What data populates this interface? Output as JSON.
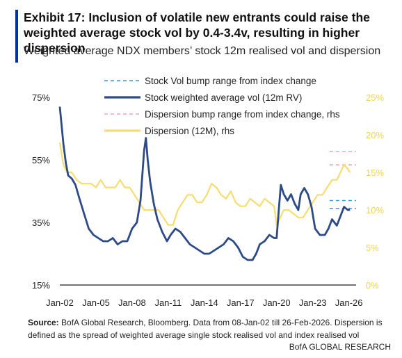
{
  "header": {
    "title": "Exhibit 17: Inclusion of volatile new entrants could raise the weighted average stock vol by 0.4-3.4v, resulting in higher dispersion",
    "subtitle": "Weighted average NDX members’ stock 12m realised vol and dispersion"
  },
  "footer": {
    "source_label": "Source:",
    "source_text": " BofA Global Research, Bloomberg. Data from 08-Jan-02 till 26-Feb-2026. Dispersion is defined as the spread of weighted average single stock realised vol and index realised vol",
    "brand": "BofA GLOBAL RESEARCH"
  },
  "colors": {
    "stock_vol": "#2c4a86",
    "stock_bump": "#2aa0d8",
    "dispersion": "#f7dc6f",
    "dispersion_bump": "#e8a9b3",
    "left_axis_text": "#222222",
    "right_axis_text": "#f2d35a"
  },
  "chart_data": {
    "type": "line",
    "x_tick_labels": [
      "Jan-02",
      "Jan-05",
      "Jan-08",
      "Jan-11",
      "Jan-14",
      "Jan-17",
      "Jan-20",
      "Jan-23",
      "Jan-26"
    ],
    "x_tick_years": [
      2002,
      2005,
      2008,
      2011,
      2014,
      2017,
      2020,
      2023,
      2026
    ],
    "xlim": [
      2002.0,
      2026.6
    ],
    "y_left": {
      "ylim": [
        15,
        75
      ],
      "ticks": [
        15,
        35,
        55,
        75
      ],
      "tick_labels": [
        "15%",
        "35%",
        "55%",
        "75%"
      ]
    },
    "y_right": {
      "ylim": [
        0,
        25
      ],
      "ticks": [
        0,
        5,
        10,
        15,
        20,
        25
      ],
      "tick_labels": [
        "0%",
        "5%",
        "10%",
        "15%",
        "20%",
        "25%"
      ]
    },
    "legend_position": "top-center",
    "series": [
      {
        "name": "Stock weighted average vol (12m RV)",
        "axis": "left",
        "style": "solid",
        "x": [
          2002.0,
          2002.15,
          2002.3,
          2002.5,
          2002.7,
          2003.0,
          2003.3,
          2003.6,
          2004.0,
          2004.4,
          2004.8,
          2005.2,
          2005.6,
          2006.0,
          2006.4,
          2006.8,
          2007.2,
          2007.6,
          2008.0,
          2008.4,
          2008.7,
          2009.0,
          2009.15,
          2009.3,
          2009.5,
          2009.8,
          2010.1,
          2010.5,
          2010.9,
          2011.2,
          2011.6,
          2012.0,
          2012.4,
          2012.8,
          2013.2,
          2013.6,
          2014.0,
          2014.4,
          2014.8,
          2015.2,
          2015.6,
          2016.0,
          2016.4,
          2016.8,
          2017.2,
          2017.6,
          2018.0,
          2018.3,
          2018.6,
          2019.0,
          2019.4,
          2019.8,
          2020.0,
          2020.2,
          2020.35,
          2020.6,
          2020.9,
          2021.2,
          2021.5,
          2021.8,
          2022.0,
          2022.3,
          2022.6,
          2022.9,
          2023.2,
          2023.6,
          2024.0,
          2024.3,
          2024.6,
          2025.0,
          2025.3,
          2025.6,
          2025.9,
          2026.1
        ],
        "values": [
          72,
          66,
          60,
          54,
          50,
          49,
          47,
          43,
          38,
          33,
          31,
          30,
          29,
          29,
          30,
          28,
          29,
          29,
          33,
          35,
          42,
          58,
          62,
          55,
          48,
          41,
          36,
          32,
          29,
          31,
          33,
          32,
          30,
          28,
          27,
          26,
          25,
          25,
          26,
          27,
          28,
          30,
          29,
          27,
          24,
          23,
          23,
          25,
          28,
          29,
          31,
          30,
          30,
          40,
          47,
          44,
          42,
          44,
          41,
          39,
          44,
          46,
          44,
          40,
          33,
          31,
          31,
          33,
          36,
          34,
          37,
          40,
          39,
          39
        ]
      },
      {
        "name": "Dispersion (12M), rhs",
        "axis": "right",
        "style": "solid",
        "x": [
          2002.0,
          2002.3,
          2002.6,
          2003.0,
          2003.4,
          2003.8,
          2004.2,
          2004.6,
          2005.0,
          2005.4,
          2005.8,
          2006.2,
          2006.6,
          2007.0,
          2007.4,
          2007.8,
          2008.2,
          2008.6,
          2009.0,
          2009.4,
          2009.8,
          2010.2,
          2010.6,
          2011.0,
          2011.4,
          2011.8,
          2012.2,
          2012.6,
          2013.0,
          2013.4,
          2013.8,
          2014.2,
          2014.6,
          2015.0,
          2015.4,
          2015.8,
          2016.2,
          2016.6,
          2017.0,
          2017.4,
          2017.8,
          2018.2,
          2018.6,
          2019.0,
          2019.4,
          2019.8,
          2020.0,
          2020.3,
          2020.6,
          2021.0,
          2021.4,
          2021.8,
          2022.2,
          2022.6,
          2023.0,
          2023.4,
          2023.8,
          2024.2,
          2024.6,
          2025.0,
          2025.3,
          2025.6,
          2025.9,
          2026.1
        ],
        "values": [
          19,
          16,
          15,
          15,
          14,
          13.5,
          13.5,
          13.5,
          13,
          14,
          13,
          13,
          13,
          14,
          13,
          13,
          12,
          11,
          10,
          10,
          10,
          10,
          9,
          8,
          8,
          10,
          11,
          12,
          12,
          11,
          11,
          12,
          13.5,
          13,
          12,
          11.5,
          12.5,
          11,
          10.5,
          10.5,
          11.5,
          11,
          10.5,
          11.5,
          11,
          10.5,
          8,
          9,
          10,
          10,
          9.5,
          9,
          9,
          10,
          11,
          12,
          12,
          13,
          14,
          14,
          15,
          16,
          15.5,
          15
        ]
      },
      {
        "name": "Stock Vol bump range from index change",
        "axis": "left",
        "style": "dashed",
        "x_range": [
          2024.4,
          2026.6
        ],
        "levels": [
          39.5,
          42
        ]
      },
      {
        "name": "Dispersion bump range from index change, rhs",
        "axis": "right",
        "style": "dashed",
        "x_range": [
          2024.4,
          2026.6
        ],
        "levels": [
          16,
          17.8
        ]
      }
    ]
  }
}
